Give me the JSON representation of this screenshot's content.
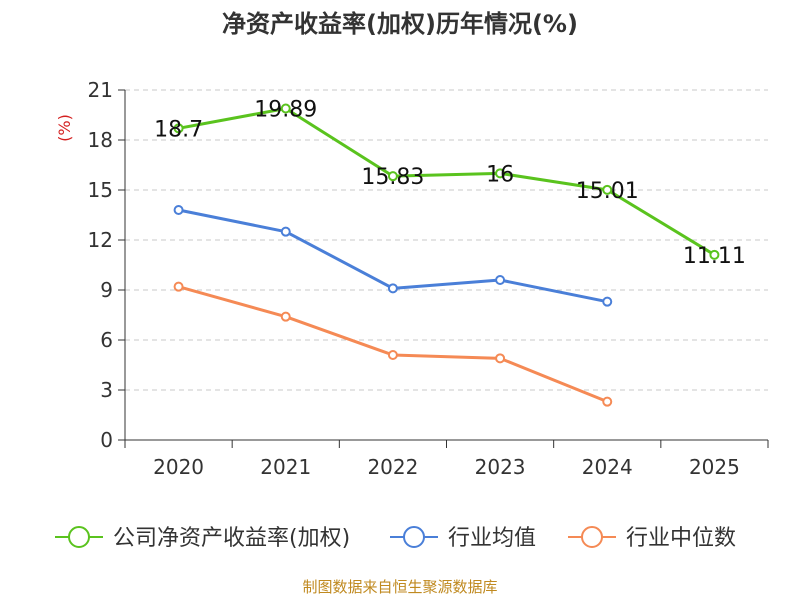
{
  "chart_data": {
    "type": "line",
    "title": "净资产收益率(加权)历年情况(%)",
    "ylabel": "(%)",
    "xlabel": "",
    "categories": [
      "2020",
      "2021",
      "2022",
      "2023",
      "2024",
      "2025"
    ],
    "ylim": [
      0,
      21
    ],
    "yticks": [
      0,
      3,
      6,
      9,
      12,
      15,
      18,
      21
    ],
    "grid": true,
    "legend_position": "bottom",
    "series": [
      {
        "name": "公司净资产收益率(加权)",
        "color": "#5ac31e",
        "values": [
          18.7,
          19.89,
          15.83,
          16,
          15.01,
          11.11
        ],
        "labels": [
          "18.7",
          "19.89",
          "15.83",
          "16",
          "15.01",
          "11.11"
        ]
      },
      {
        "name": "行业均值",
        "color": "#4a7fd8",
        "values": [
          13.8,
          12.5,
          9.1,
          9.6,
          8.3,
          null
        ]
      },
      {
        "name": "行业中位数",
        "color": "#f58a55",
        "values": [
          9.2,
          7.4,
          5.1,
          4.9,
          2.3,
          null
        ]
      }
    ]
  },
  "footer": "制图数据来自恒生聚源数据库"
}
